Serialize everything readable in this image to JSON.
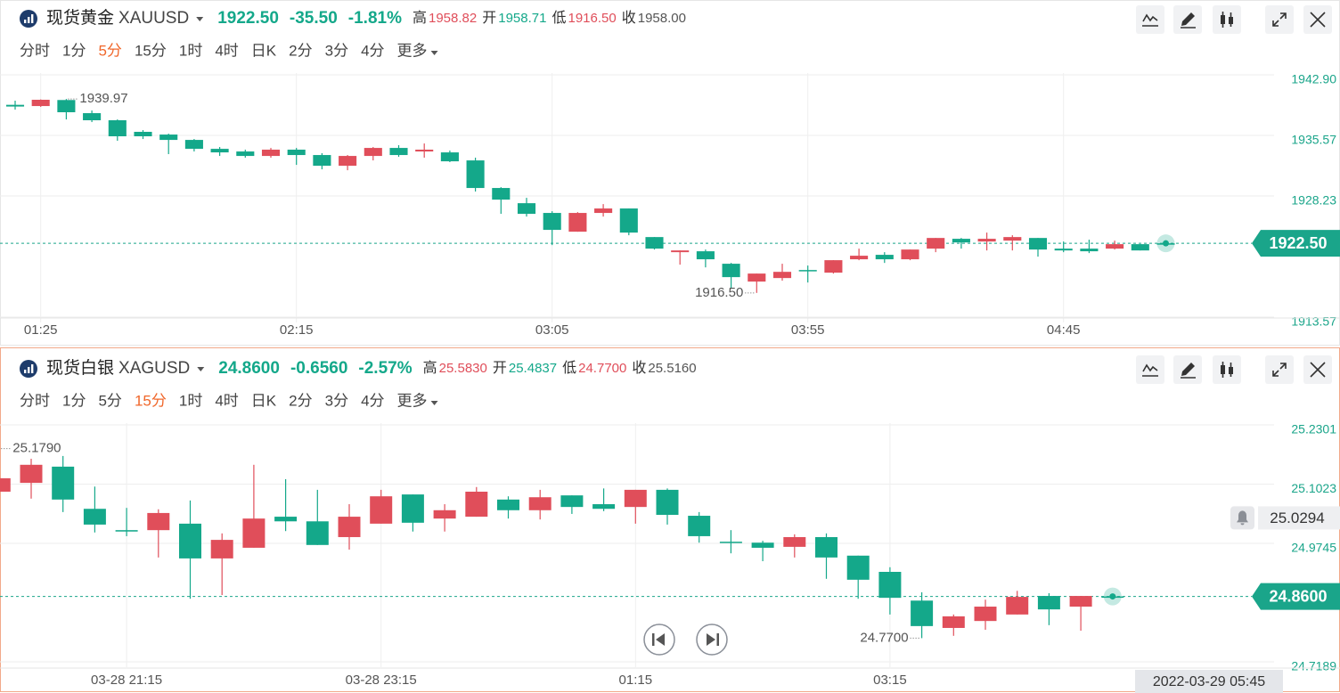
{
  "chart_data": [
    {
      "type": "candlestick",
      "title": "现货黄金",
      "symbol": "XAUUSD",
      "header": {
        "last": "1922.50",
        "change": "-35.50",
        "change_pct": "-1.81%",
        "high_label": "高",
        "high": "1958.82",
        "open_label": "开",
        "open": "1958.71",
        "low_label": "低",
        "low": "1916.50",
        "close_label": "收",
        "prev_close": "1958.00"
      },
      "intervals": [
        "分时",
        "1分",
        "5分",
        "15分",
        "1时",
        "4时",
        "日K",
        "2分",
        "3分",
        "4分",
        "更多"
      ],
      "active_interval": "5分",
      "categories": [
        null,
        "01:25",
        null,
        null,
        null,
        null,
        null,
        null,
        null,
        null,
        null,
        "02:15",
        null,
        null,
        null,
        null,
        null,
        null,
        null,
        null,
        null,
        "03:05",
        null,
        null,
        null,
        null,
        null,
        null,
        null,
        null,
        null,
        "03:55",
        null,
        null,
        null,
        null,
        null,
        null,
        null,
        null,
        null,
        "04:45",
        null,
        null,
        null,
        null
      ],
      "open": [
        1939.27,
        1939.12,
        1939.85,
        1938.26,
        1937.4,
        1936.0,
        1935.67,
        1935.02,
        1933.94,
        1933.62,
        1933.08,
        1933.84,
        1933.19,
        1931.89,
        1933.08,
        1934.05,
        1933.62,
        1933.51,
        1932.54,
        1929.2,
        1927.36,
        1926.18,
        1923.91,
        1926.18,
        1926.72,
        1923.26,
        1921.43,
        1921.54,
        1920.03,
        1917.87,
        1918.3,
        1919.27,
        1918.95,
        1920.57,
        1921.11,
        1920.57,
        1921.86,
        1923.05,
        1922.72,
        1922.83,
        1923.15,
        1921.86,
        1921.86,
        1921.86,
        1922.4,
        1922.5
      ],
      "high": [
        1939.77,
        1939.92,
        1939.97,
        1938.58,
        1937.5,
        1936.21,
        1935.78,
        1935.13,
        1934.16,
        1933.84,
        1934.05,
        1934.05,
        1933.41,
        1933.19,
        1934.16,
        1934.38,
        1934.59,
        1933.73,
        1932.87,
        1929.3,
        1928.01,
        1926.39,
        1926.28,
        1927.25,
        1926.72,
        1923.26,
        1921.64,
        1921.75,
        1920.13,
        1918.84,
        1920.03,
        1919.81,
        1920.46,
        1921.86,
        1921.43,
        1921.75,
        1923.15,
        1923.15,
        1923.8,
        1923.48,
        1923.15,
        1922.72,
        1922.94,
        1922.83,
        1922.4,
        1922.61
      ],
      "low": [
        1938.69,
        1939.02,
        1937.5,
        1937.18,
        1934.92,
        1935.13,
        1933.3,
        1933.62,
        1933.08,
        1932.87,
        1932.87,
        1932.0,
        1931.46,
        1931.35,
        1932.54,
        1932.97,
        1932.87,
        1932.33,
        1928.77,
        1926.07,
        1925.74,
        1922.29,
        1923.91,
        1925.74,
        1923.48,
        1921.75,
        1919.92,
        1919.59,
        1917.0,
        1916.5,
        1917.98,
        1917.76,
        1918.84,
        1920.46,
        1920.13,
        1920.46,
        1921.43,
        1921.86,
        1921.64,
        1921.64,
        1920.89,
        1921.43,
        1921.32,
        1921.75,
        1921.64,
        1922.4
      ],
      "close": [
        1939.06,
        1939.88,
        1938.37,
        1937.4,
        1935.46,
        1935.46,
        1935.02,
        1933.94,
        1933.51,
        1933.08,
        1933.84,
        1933.19,
        1931.89,
        1933.08,
        1934.05,
        1933.19,
        1933.84,
        1932.43,
        1929.2,
        1927.79,
        1926.07,
        1924.13,
        1926.18,
        1926.72,
        1923.8,
        1921.86,
        1921.64,
        1920.57,
        1918.41,
        1918.84,
        1919.05,
        1919.16,
        1920.46,
        1921.0,
        1920.57,
        1921.75,
        1923.15,
        1922.61,
        1923.05,
        1923.26,
        1921.75,
        1921.64,
        1921.54,
        1922.4,
        1921.64,
        1922.5
      ],
      "up_color": "#e04e5a",
      "down_color": "#14a88a",
      "ylim": [
        1913.57,
        1942.9
      ],
      "yticks": [
        {
          "value": 1942.9,
          "label": "1942.90"
        },
        1935.57,
        1928.23,
        1913.57
      ],
      "last_price": {
        "value": 1922.5,
        "label": "1922.50"
      },
      "annotations": [
        {
          "value": 1939.97,
          "label": "1939.97"
        },
        {
          "value": 1916.5,
          "label": "1916.50"
        }
      ],
      "grid": true
    },
    {
      "type": "candlestick",
      "title": "现货白银",
      "symbol": "XAGUSD",
      "header": {
        "last": "24.8600",
        "change": "-0.6560",
        "change_pct": "-2.57%",
        "high_label": "高",
        "high": "25.5830",
        "open_label": "开",
        "open": "25.4837",
        "low_label": "低",
        "low": "24.7700",
        "close_label": "收",
        "prev_close": "25.5160"
      },
      "intervals": [
        "分时",
        "1分",
        "5分",
        "15分",
        "1时",
        "4时",
        "日K",
        "2分",
        "3分",
        "4分",
        "更多"
      ],
      "active_interval": "15分",
      "categories": [
        null,
        null,
        null,
        null,
        "03-28 21:15",
        null,
        null,
        null,
        null,
        null,
        null,
        null,
        "03-28 23:15",
        null,
        null,
        null,
        null,
        null,
        null,
        null,
        "01:15",
        null,
        null,
        null,
        null,
        null,
        null,
        null,
        "03:15",
        null,
        null,
        null,
        null,
        null,
        null,
        null
      ],
      "open": [
        25.086,
        25.105,
        25.14,
        25.049,
        25.003,
        25.003,
        25.017,
        24.942,
        24.965,
        25.032,
        25.022,
        24.988,
        25.017,
        25.08,
        25.028,
        25.032,
        25.069,
        25.046,
        25.078,
        25.059,
        25.053,
        25.09,
        25.034,
        24.978,
        24.976,
        24.967,
        24.988,
        24.948,
        24.913,
        24.851,
        24.792,
        24.807,
        24.821,
        24.861,
        24.838,
        24.86
      ],
      "high": [
        25.179,
        25.157,
        25.163,
        25.097,
        25.051,
        25.048,
        25.067,
        24.996,
        25.144,
        25.113,
        25.09,
        25.059,
        25.09,
        25.08,
        25.059,
        25.096,
        25.076,
        25.09,
        25.078,
        25.093,
        25.09,
        25.093,
        25.042,
        25.003,
        24.98,
        24.994,
        24.996,
        24.948,
        24.923,
        24.869,
        24.821,
        24.853,
        24.872,
        24.867,
        24.861,
        24.862
      ],
      "low": [
        25.06,
        25.071,
        25.042,
        24.998,
        24.99,
        24.944,
        24.855,
        24.863,
        24.965,
        25.001,
        24.971,
        24.961,
        25.017,
        25.0,
        25.0,
        25.032,
        25.028,
        25.026,
        25.038,
        25.044,
        25.017,
        25.015,
        24.976,
        24.953,
        24.936,
        24.944,
        24.898,
        24.855,
        24.821,
        24.77,
        24.775,
        24.788,
        24.821,
        24.798,
        24.786,
        24.858
      ],
      "close": [
        25.115,
        25.144,
        25.069,
        25.015,
        25.0,
        25.04,
        24.942,
        24.982,
        25.028,
        25.022,
        24.971,
        25.032,
        25.076,
        25.019,
        25.046,
        25.086,
        25.046,
        25.074,
        25.053,
        25.049,
        25.09,
        25.036,
        24.99,
        24.976,
        24.965,
        24.988,
        24.944,
        24.896,
        24.857,
        24.796,
        24.817,
        24.838,
        24.859,
        24.832,
        24.861,
        24.86
      ],
      "up_color": "#e04e5a",
      "down_color": "#14a88a",
      "ylim": [
        24.7189,
        25.2301
      ],
      "yticks": [
        25.2301,
        25.1023,
        24.9745,
        24.7189
      ],
      "last_price": {
        "value": 24.86,
        "label": "24.8600"
      },
      "alert_price": {
        "value": 25.0294,
        "label": "25.0294"
      },
      "cursor_time": "2022-03-29 05:45",
      "annotations": [
        {
          "value": 25.179,
          "label": "25.1790"
        },
        {
          "value": 24.77,
          "label": "24.7700"
        }
      ],
      "grid": true
    }
  ]
}
